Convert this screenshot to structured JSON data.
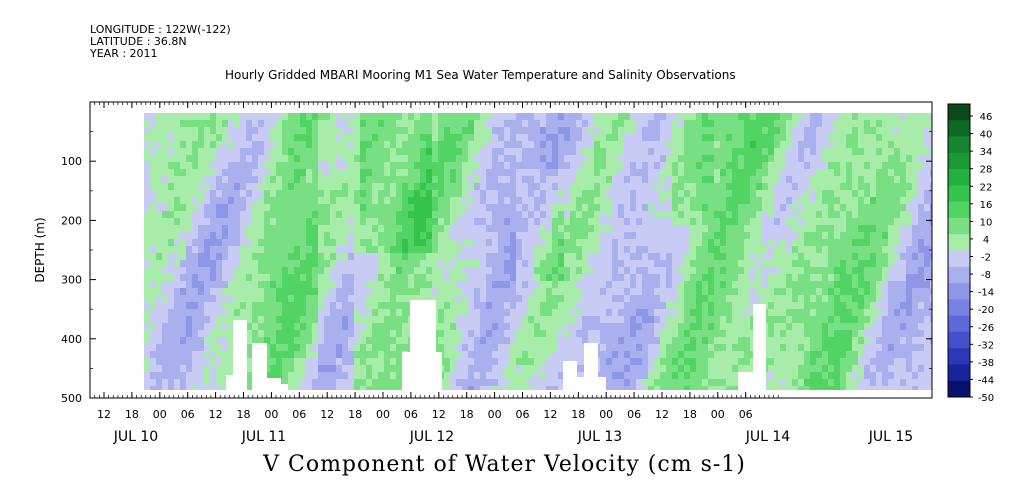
{
  "header": {
    "longitude": "LONGITUDE : 122W(-122)",
    "latitude": "LATITUDE : 36.8N",
    "year": "YEAR : 2011"
  },
  "chart_data": {
    "type": "heatmap",
    "title": "Hourly Gridded MBARI Mooring M1 Sea Water Temperature and Salinity Observations",
    "xlabel": "V Component of Water Velocity (cm s-1)",
    "ylabel": "DEPTH (m)",
    "y_ticks": [
      100,
      200,
      300,
      400,
      500
    ],
    "ylim": [
      500,
      0
    ],
    "x_hour_ticks": [
      "12",
      "18",
      "00",
      "06",
      "12",
      "18",
      "00",
      "06",
      "12",
      "18",
      "00",
      "06",
      "12",
      "18",
      "00",
      "06",
      "12",
      "18",
      "00",
      "06",
      "12",
      "18",
      "00",
      "06"
    ],
    "x_day_labels": [
      "JUL 10",
      "JUL 11",
      "JUL 12",
      "JUL 13",
      "JUL 14",
      "JUL 15"
    ],
    "colorbar": {
      "labels": [
        "46",
        "40",
        "34",
        "28",
        "22",
        "16",
        "10",
        "4",
        "-2",
        "-8",
        "-14",
        "-20",
        "-26",
        "-32",
        "-38",
        "-44",
        "-50"
      ],
      "range": [
        -50,
        46
      ]
    },
    "data_depth_range_m": [
      20,
      485
    ]
  }
}
